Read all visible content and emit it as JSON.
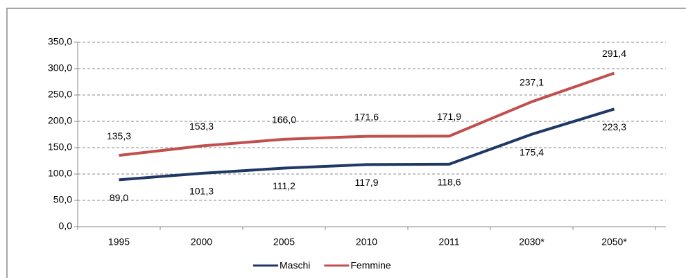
{
  "chart_data": {
    "type": "line",
    "categories": [
      "1995",
      "2000",
      "2005",
      "2010",
      "2011",
      "2030*",
      "2050*"
    ],
    "series": [
      {
        "name": "Maschi",
        "color": "#1f3864",
        "values": [
          89.0,
          101.3,
          111.2,
          117.9,
          118.6,
          175.4,
          223.3
        ],
        "value_labels": [
          "89,0",
          "101,3",
          "111,2",
          "117,9",
          "118,6",
          "175,4",
          "223,3"
        ]
      },
      {
        "name": "Femmine",
        "color": "#c0504d",
        "values": [
          135.3,
          153.3,
          166.0,
          171.6,
          171.9,
          237.1,
          291.4
        ],
        "value_labels": [
          "135,3",
          "153,3",
          "166,0",
          "171,6",
          "171,9",
          "237,1",
          "291,4"
        ]
      }
    ],
    "ylim": [
      0,
      350
    ],
    "yticks": [
      {
        "value": 0,
        "label": "0,0"
      },
      {
        "value": 50,
        "label": "50,0"
      },
      {
        "value": 100,
        "label": "100,0"
      },
      {
        "value": 150,
        "label": "150,0"
      },
      {
        "value": 200,
        "label": "200,0"
      },
      {
        "value": 250,
        "label": "250,0"
      },
      {
        "value": 300,
        "label": "300,0"
      },
      {
        "value": 350,
        "label": "350,0"
      }
    ],
    "grid": true,
    "legend": "bottom"
  }
}
